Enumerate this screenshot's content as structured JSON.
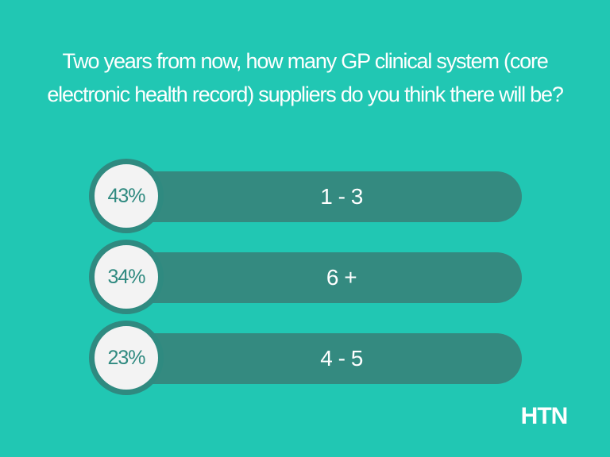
{
  "title": "Two years from now, how many GP clinical system (core electronic health record) suppliers do you think there will be?",
  "options": [
    {
      "percent": "43%",
      "label": "1 - 3"
    },
    {
      "percent": "34%",
      "label": "6 +"
    },
    {
      "percent": "23%",
      "label": "4 - 5"
    }
  ],
  "brand": "HTN"
}
